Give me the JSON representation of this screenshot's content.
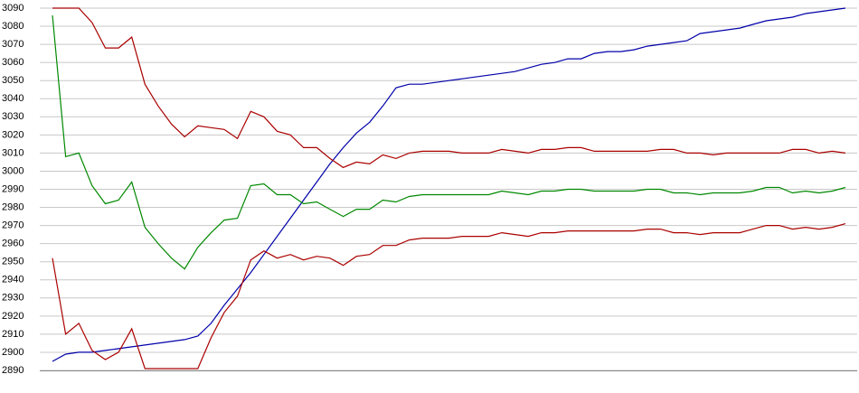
{
  "chart_data": {
    "type": "line",
    "categories": [
      null,
      null,
      null,
      null,
      null,
      null,
      null,
      null,
      null,
      null,
      null,
      null,
      null,
      null,
      null,
      null,
      null,
      null,
      null,
      null,
      null,
      null,
      null,
      null,
      null,
      null,
      null,
      null,
      null,
      null,
      null,
      null,
      null,
      null,
      null,
      null,
      null,
      null,
      null,
      null,
      null,
      null,
      null,
      null,
      null,
      null,
      null,
      null,
      null,
      null,
      null,
      null,
      null,
      null,
      null,
      null,
      null,
      null,
      null,
      null,
      null
    ],
    "series": [
      {
        "color": "#0000aa",
        "values": [
          2895,
          2899,
          2900,
          2900,
          2901,
          2902,
          2903,
          2904,
          2905,
          2906,
          2907,
          2909,
          2916,
          2926,
          2935,
          2944,
          2954,
          2964,
          2974,
          2984,
          2994,
          3004,
          3013,
          3021,
          3027,
          3036,
          3046,
          3048,
          3048,
          3049,
          3050,
          3051,
          3052,
          3053,
          3054,
          3055,
          3057,
          3059,
          3060,
          3062,
          3062,
          3065,
          3066,
          3066,
          3067,
          3069,
          3070,
          3071,
          3072,
          3076,
          3077,
          3078,
          3079,
          3081,
          3083,
          3084,
          3085,
          3087,
          3088,
          3089,
          3090
        ]
      },
      {
        "color": "#aa0000",
        "values": [
          3090,
          3090,
          3090,
          3082,
          3068,
          3068,
          3074,
          3048,
          3036,
          3026,
          3019,
          3025,
          3024,
          3023,
          3018,
          3033,
          3030,
          3022,
          3020,
          3013,
          3013,
          3007,
          3002,
          3005,
          3004,
          3009,
          3007,
          3010,
          3011,
          3011,
          3011,
          3010,
          3010,
          3010,
          3012,
          3011,
          3010,
          3012,
          3012,
          3013,
          3013,
          3011,
          3011,
          3011,
          3011,
          3011,
          3012,
          3012,
          3010,
          3010,
          3009,
          3010,
          3010,
          3010,
          3010,
          3010,
          3012,
          3012,
          3010,
          3011,
          3010
        ]
      },
      {
        "color": "#008800",
        "values": [
          3086,
          3008,
          3010,
          2992,
          2982,
          2984,
          2994,
          2969,
          2960,
          2952,
          2946,
          2958,
          2966,
          2973,
          2974,
          2992,
          2993,
          2987,
          2987,
          2982,
          2983,
          2979,
          2975,
          2979,
          2979,
          2984,
          2983,
          2986,
          2987,
          2987,
          2987,
          2987,
          2987,
          2987,
          2989,
          2988,
          2987,
          2989,
          2989,
          2990,
          2990,
          2989,
          2989,
          2989,
          2989,
          2990,
          2990,
          2988,
          2988,
          2987,
          2988,
          2988,
          2988,
          2989,
          2991,
          2991,
          2988,
          2989,
          2988,
          2989,
          2991
        ]
      },
      {
        "color": "#aa0000",
        "values": [
          2952,
          2910,
          2916,
          2901,
          2896,
          2900,
          2913,
          2891,
          2891,
          2891,
          2891,
          2891,
          2908,
          2922,
          2931,
          2951,
          2956,
          2952,
          2954,
          2951,
          2953,
          2952,
          2948,
          2953,
          2954,
          2959,
          2959,
          2962,
          2963,
          2963,
          2963,
          2964,
          2964,
          2964,
          2966,
          2965,
          2964,
          2966,
          2966,
          2967,
          2967,
          2967,
          2967,
          2967,
          2967,
          2968,
          2968,
          2966,
          2966,
          2965,
          2966,
          2966,
          2966,
          2968,
          2970,
          2970,
          2968,
          2969,
          2968,
          2969,
          2971
        ]
      }
    ],
    "ylim": [
      2890,
      3090
    ],
    "yticks": [
      2890,
      2900,
      2910,
      2920,
      2930,
      2940,
      2950,
      2960,
      2970,
      2980,
      2990,
      3000,
      3010,
      3020,
      3030,
      3040,
      3050,
      3060,
      3070,
      3080,
      3090
    ],
    "grid": true
  }
}
